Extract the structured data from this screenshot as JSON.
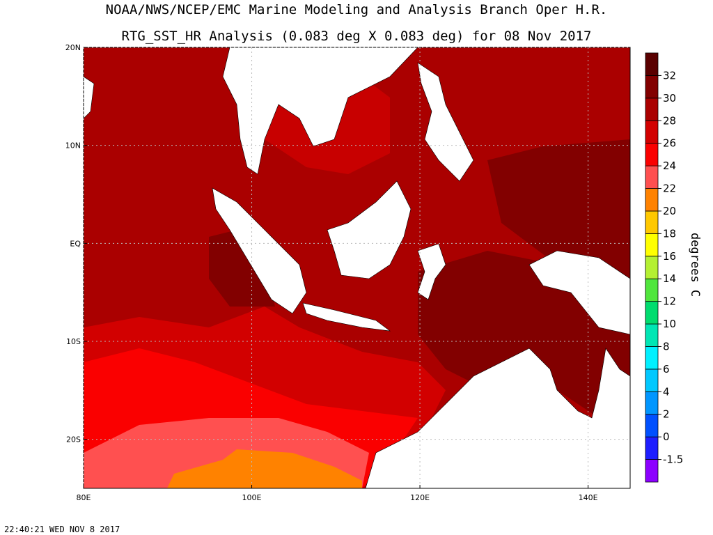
{
  "header": {
    "title": "NOAA/NWS/NCEP/EMC Marine Modeling and Analysis Branch Oper H.R.",
    "subtitle": "RTG_SST_HR Analysis (0.083 deg X 0.083 deg) for 08 Nov 2017"
  },
  "map": {
    "lon_range": [
      80,
      145
    ],
    "lat_range": [
      -25,
      20
    ],
    "lon_ticks": [
      {
        "value": 80,
        "label": "80E"
      },
      {
        "value": 100,
        "label": "100E"
      },
      {
        "value": 120,
        "label": "120E"
      },
      {
        "value": 140,
        "label": "140E"
      }
    ],
    "lat_ticks": [
      {
        "value": 20,
        "label": "20N"
      },
      {
        "value": 10,
        "label": "10N"
      },
      {
        "value": 0,
        "label": "EQ"
      },
      {
        "value": -10,
        "label": "10S"
      },
      {
        "value": -20,
        "label": "20S"
      }
    ]
  },
  "colorbar": {
    "label": "degrees C",
    "levels": [
      -1.5,
      0,
      2,
      4,
      6,
      8,
      10,
      12,
      14,
      16,
      18,
      20,
      22,
      24,
      26,
      28,
      30,
      32
    ],
    "colors": [
      "#8c00ff",
      "#1e1eff",
      "#0050ff",
      "#0096ff",
      "#00c8ff",
      "#00f0ff",
      "#00e6b4",
      "#00dc6e",
      "#50e63c",
      "#b4f032",
      "#ffff00",
      "#ffc800",
      "#ff8200",
      "#ff5050",
      "#fa0000",
      "#d20000",
      "#aa0000",
      "#820000",
      "#5a0000"
    ]
  },
  "timestamp": "22:40:21  WED NOV 8 2017"
}
